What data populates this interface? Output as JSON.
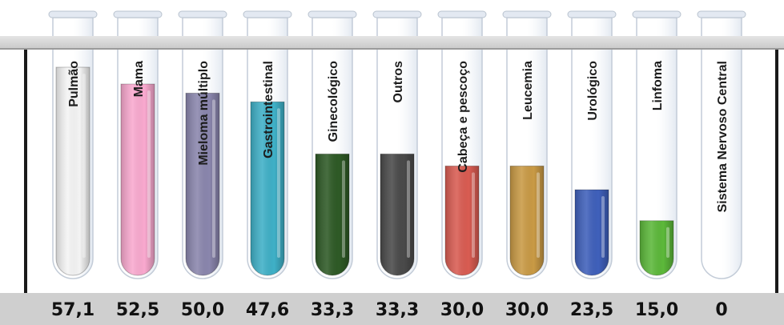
{
  "chart_data": {
    "type": "bar",
    "categories": [
      "Pulmão",
      "Mama",
      "Mieloma múltiplo",
      "Gastrointestinal",
      "Ginecológico",
      "Outros",
      "Cabeça e pescoço",
      "Leucemia",
      "Urológico",
      "Linfoma",
      "Sistema Nervoso Central"
    ],
    "values": [
      57.1,
      52.5,
      50.0,
      47.6,
      33.3,
      33.3,
      30.0,
      30.0,
      23.5,
      15.0,
      0
    ],
    "value_labels": [
      "57,1",
      "52,5",
      "50,0",
      "47,6",
      "33,3",
      "33,3",
      "30,0",
      "30,0",
      "23,5",
      "15,0",
      "0"
    ],
    "colors": [
      "#f4f4f4",
      "#f9a9cf",
      "#8a86ad",
      "#3fb0c7",
      "#2e5a26",
      "#4a4a4a",
      "#d95c52",
      "#c99a45",
      "#3f60bb",
      "#5cb83a",
      "#f7f7f7"
    ],
    "ylim": [
      0,
      57.1
    ],
    "title": "",
    "xlabel": "",
    "ylabel": "",
    "grid": false,
    "legend": "none"
  }
}
